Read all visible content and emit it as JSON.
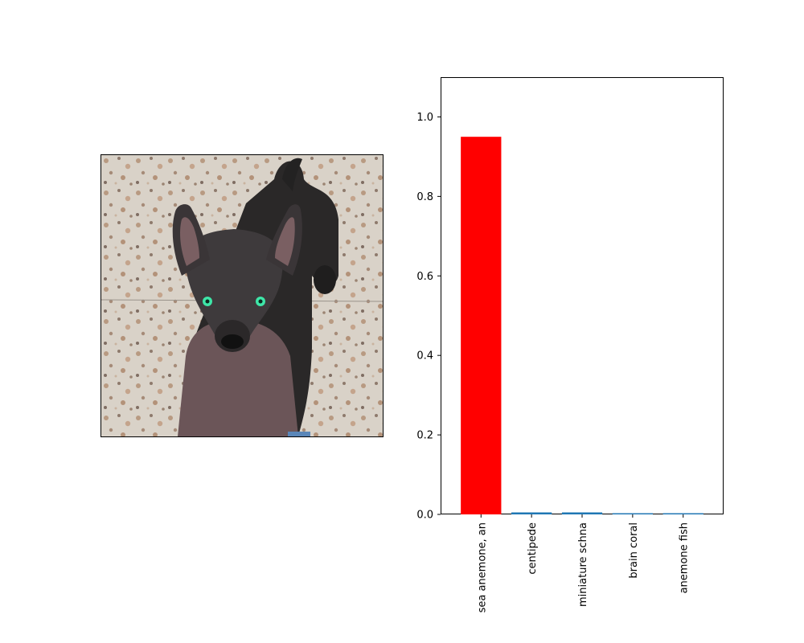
{
  "image_panel": {
    "subject_icon": "dog-photo",
    "background": "terrazzo-floor"
  },
  "chart_data": {
    "type": "bar",
    "categories": [
      "sea anemone, an",
      "centipede",
      "miniature schna",
      "brain coral",
      "anemone fish"
    ],
    "values": [
      0.95,
      0.005,
      0.005,
      0.003,
      0.003
    ],
    "bar_colors": [
      "#ff0000",
      "#1f77b4",
      "#1f77b4",
      "#1f77b4",
      "#1f77b4"
    ],
    "ylim": [
      0,
      1.1
    ],
    "yticks": [
      "0.0",
      "0.2",
      "0.4",
      "0.6",
      "0.8",
      "1.0"
    ],
    "grid": false,
    "title": "",
    "xlabel": "",
    "ylabel": ""
  }
}
